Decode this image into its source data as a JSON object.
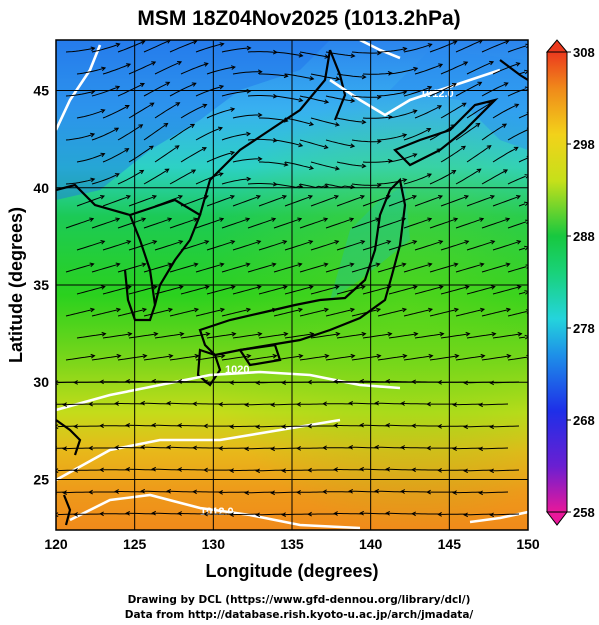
{
  "title": "MSM 18Z04Nov2025 (1013.2hPa)",
  "map": {
    "lon_range": [
      120,
      150
    ],
    "lat_range": [
      22.4,
      47.6
    ],
    "xlabel": "Longitude (degrees)",
    "ylabel": "Latitude  (degrees)",
    "x_ticks": [
      120,
      125,
      130,
      135,
      140,
      145,
      150
    ],
    "y_ticks": [
      25,
      30,
      35,
      40,
      45
    ],
    "isobar_labels": [
      "1012.0",
      "1012.0",
      "1020"
    ]
  },
  "colorbar": {
    "min": 258,
    "max": 308,
    "ticks": [
      258,
      268,
      278,
      288,
      298,
      308
    ]
  },
  "credits": {
    "line1": "Drawing by DCL (https://www.gfd-dennou.org/library/dcl/)",
    "line2": "Data from http://database.rish.kyoto-u.ac.jp/arch/jmadata/"
  },
  "colors": {
    "cold": "#1e6fe8",
    "cool": "#2fd1e3",
    "mild": "#17c83f",
    "warm": "#c9e01a",
    "hot": "#f08a1a",
    "land": "#000000",
    "isobar": "#ffffff"
  }
}
